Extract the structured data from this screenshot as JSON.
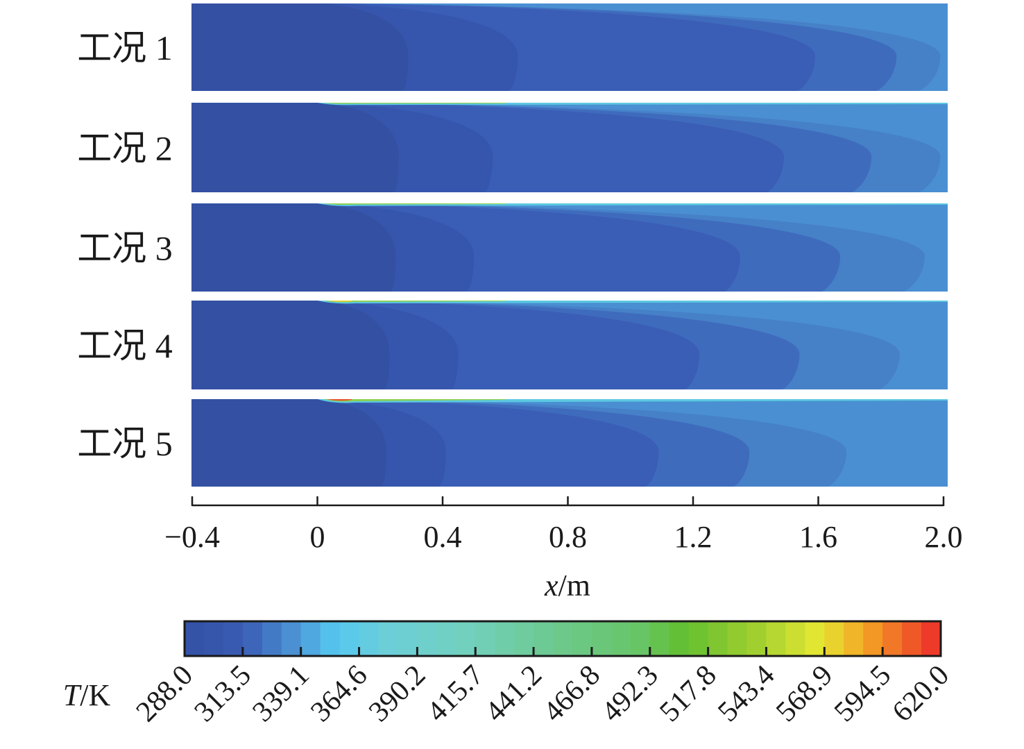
{
  "chart_data": {
    "type": "heatmap",
    "title": "",
    "xlabel": "x/m",
    "xlabel_var": "x",
    "xlabel_unit": "/m",
    "xlim": [
      -0.4,
      2.0
    ],
    "xticks": [
      "−0.4",
      "0",
      "0.4",
      "0.8",
      "1.2",
      "1.6",
      "2.0"
    ],
    "xtick_values": [
      -0.4,
      0,
      0.4,
      0.8,
      1.2,
      1.6,
      2.0
    ],
    "cases": [
      {
        "label": "工况 1",
        "contour_tips_m": [
          0.29,
          0.64,
          1.59,
          1.85,
          1.99
        ],
        "hot_streak": 0
      },
      {
        "label": "工况 2",
        "contour_tips_m": [
          0.26,
          0.56,
          1.49,
          1.77,
          1.99
        ],
        "hot_streak": 0.1
      },
      {
        "label": "工况 3",
        "contour_tips_m": [
          0.25,
          0.5,
          1.35,
          1.67,
          1.94
        ],
        "hot_streak": 0.3
      },
      {
        "label": "工况 4",
        "contour_tips_m": [
          0.23,
          0.45,
          1.22,
          1.54,
          1.86
        ],
        "hot_streak": 0.5
      },
      {
        "label": "工况 5",
        "contour_tips_m": [
          0.22,
          0.41,
          1.09,
          1.38,
          1.69
        ],
        "hot_streak": 1.0
      }
    ],
    "band_colors": [
      "#3350a3",
      "#3656ad",
      "#3a5db5",
      "#3f6bbd",
      "#4681c8",
      "#4a8fd2"
    ],
    "colorbar": {
      "label": "T/K",
      "label_var": "T",
      "label_unit": "/K",
      "min": 288.0,
      "max": 620.0,
      "ticks": [
        "288.0",
        "313.5",
        "339.1",
        "364.6",
        "390.2",
        "415.7",
        "441.2",
        "466.8",
        "492.3",
        "517.8",
        "543.4",
        "568.9",
        "594.5",
        "620.0"
      ],
      "segments": 39,
      "stops": [
        [
          0,
          "#3350a3"
        ],
        [
          0.08,
          "#3a5db5"
        ],
        [
          0.14,
          "#4a8fd2"
        ],
        [
          0.2,
          "#55c8f0"
        ],
        [
          0.27,
          "#6ccfd8"
        ],
        [
          0.38,
          "#72d0bc"
        ],
        [
          0.5,
          "#6cc98a"
        ],
        [
          0.6,
          "#68c568"
        ],
        [
          0.66,
          "#62be30"
        ],
        [
          0.76,
          "#a4d030"
        ],
        [
          0.84,
          "#e6e832"
        ],
        [
          0.9,
          "#f4a424"
        ],
        [
          1.0,
          "#ec2a2a"
        ]
      ]
    }
  }
}
